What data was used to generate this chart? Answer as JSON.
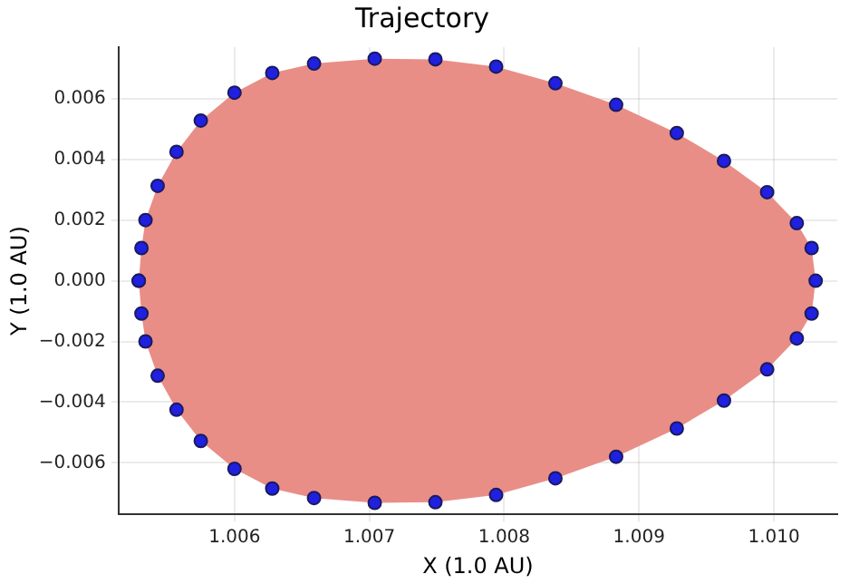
{
  "chart_data": {
    "type": "area",
    "title": "Trajectory",
    "xlabel": "X (1.0 AU)",
    "ylabel": "Y (1.0 AU)",
    "x": [
      1.00529,
      1.00531,
      1.00534,
      1.00543,
      1.00557,
      1.00575,
      1.006,
      1.00628,
      1.00659,
      1.00704,
      1.00749,
      1.00794,
      1.00838,
      1.00883,
      1.00928,
      1.00963,
      1.00995,
      1.01017,
      1.01028,
      1.01031,
      1.01028,
      1.01017,
      1.00995,
      1.00963,
      1.00928,
      1.00883,
      1.00838,
      1.00794,
      1.00749,
      1.00704,
      1.00659,
      1.00628,
      1.006,
      1.00575,
      1.00557,
      1.00543,
      1.00534,
      1.00531,
      1.00529
    ],
    "series": [
      {
        "color": "#e88e87",
        "values": [
          0,
          0.00108,
          0.002,
          0.00313,
          0.00425,
          0.00528,
          0.0062,
          0.00685,
          0.00716,
          0.00732,
          0.0073,
          0.00706,
          0.00651,
          0.0058,
          0.00487,
          0.00395,
          0.00292,
          0.0019,
          0.00108,
          0,
          -0.00108,
          -0.0019,
          -0.00292,
          -0.00395,
          -0.00487,
          -0.0058,
          -0.00651,
          -0.00706,
          -0.0073,
          -0.00732,
          -0.00716,
          -0.00685,
          -0.0062,
          -0.00528,
          -0.00425,
          -0.00313,
          -0.002,
          -0.00108,
          0
        ]
      },
      {
        "type": "scatter",
        "color": "#2020e0",
        "marker": "circle",
        "values": [
          0,
          0.00108,
          0.002,
          0.00313,
          0.00425,
          0.00528,
          0.0062,
          0.00685,
          0.00716,
          0.00732,
          0.0073,
          0.00706,
          0.00651,
          0.0058,
          0.00487,
          0.00395,
          0.00292,
          0.0019,
          0.00108,
          0,
          -0.00108,
          -0.0019,
          -0.00292,
          -0.00395,
          -0.00487,
          -0.0058,
          -0.00651,
          -0.00706,
          -0.0073,
          -0.00732,
          -0.00716,
          -0.00685,
          -0.0062,
          -0.00528,
          -0.00425,
          -0.00313,
          -0.002,
          -0.00108,
          0
        ]
      }
    ],
    "xlim": [
      1.00514,
      1.01047
    ],
    "xticks": [
      1.006,
      1.007,
      1.008,
      1.009,
      {
        "value": 1.01,
        "label": "1.010"
      }
    ],
    "ylim": [
      -0.0077,
      0.0077
    ],
    "yticks": [
      {
        "value": -0.006,
        "label": "−0.006"
      },
      {
        "value": -0.004,
        "label": "−0.004"
      },
      {
        "value": -0.002,
        "label": "−0.002"
      },
      {
        "value": 0,
        "label": "0.000"
      },
      0.002,
      0.004,
      0.006
    ],
    "grid": true,
    "legend": false
  }
}
